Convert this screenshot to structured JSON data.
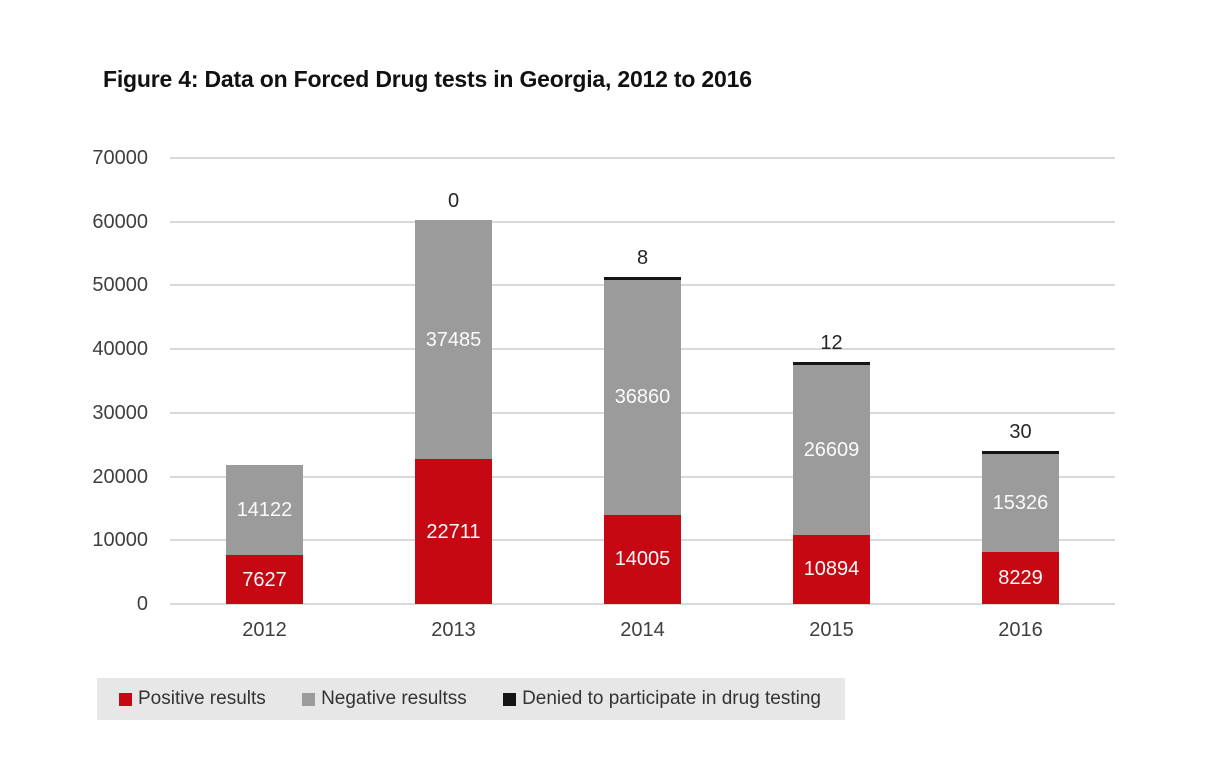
{
  "chart_data": {
    "type": "bar",
    "stacked": true,
    "title": "Figure 4: Data on Forced Drug tests in Georgia, 2012 to 2016",
    "categories": [
      "2012",
      "2013",
      "2014",
      "2015",
      "2016"
    ],
    "series": [
      {
        "name": "Positive results",
        "color": "#c50812",
        "values": [
          7627,
          22711,
          14005,
          10894,
          8229
        ]
      },
      {
        "name": "Negative resultss",
        "color": "#9b9b9b",
        "values": [
          14122,
          37485,
          36860,
          26609,
          15326
        ]
      },
      {
        "name": "Denied to participate in drug testing",
        "color": "#141414",
        "values": [
          null,
          0,
          8,
          12,
          30
        ]
      }
    ],
    "denied_labels_above_bars": [
      "",
      "0",
      "8",
      "12",
      "30"
    ],
    "y_ticks": [
      0,
      10000,
      20000,
      30000,
      40000,
      50000,
      60000,
      70000
    ],
    "ylim": [
      0,
      70000
    ],
    "xlabel": "",
    "ylabel": "",
    "grid": true,
    "legend_position": "bottom",
    "colors": {
      "gridline": "#d9d9d9",
      "legend_background": "#e7e7e7",
      "axis_text": "#3f3f3f",
      "title_text": "#111111",
      "segment_label_text": "#fafafa"
    }
  }
}
